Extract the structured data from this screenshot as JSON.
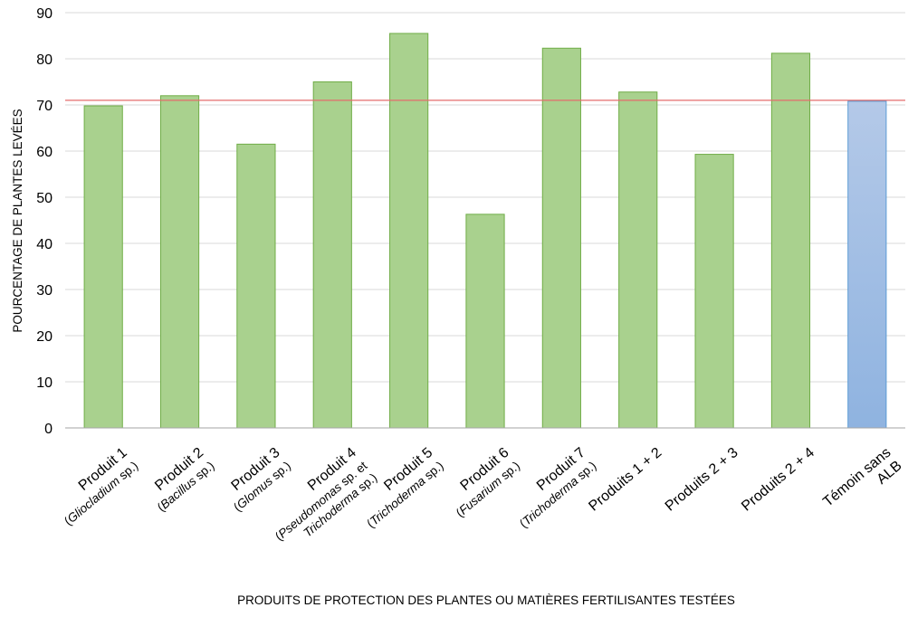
{
  "chart_data": {
    "type": "bar",
    "title": "",
    "xlabel": "PRODUITS DE PROTECTION DES PLANTES OU MATIÈRES FERTILISANTES TESTÉES",
    "ylabel": "POURCENTAGE DE PLANTES LEVÉES",
    "ylim": [
      0,
      90
    ],
    "yticks": [
      0,
      10,
      20,
      30,
      40,
      50,
      60,
      70,
      80,
      90
    ],
    "grid": true,
    "reference_line": 71,
    "categories": [
      {
        "label": "Produit 1",
        "sub": [
          {
            "text": "(",
            "italic": false
          },
          {
            "text": "Gliocladium",
            "italic": true
          },
          {
            "text": " sp.)",
            "italic": false
          }
        ]
      },
      {
        "label": "Produit 2",
        "sub": [
          {
            "text": "(",
            "italic": false
          },
          {
            "text": "Bacillus",
            "italic": true
          },
          {
            "text": " sp.)",
            "italic": false
          }
        ]
      },
      {
        "label": "Produit 3",
        "sub": [
          {
            "text": "(",
            "italic": false
          },
          {
            "text": "Glomus",
            "italic": true
          },
          {
            "text": " sp.)",
            "italic": false
          }
        ]
      },
      {
        "label": "Produit 4",
        "sub": [
          {
            "text": "(",
            "italic": false
          },
          {
            "text": "Pseudomonas",
            "italic": true
          },
          {
            "text": " sp. et",
            "italic": false
          }
        ],
        "sub2": [
          {
            "text": "Trichoderma",
            "italic": true
          },
          {
            "text": " sp.)",
            "italic": false
          }
        ]
      },
      {
        "label": "Produit 5",
        "sub": [
          {
            "text": "(",
            "italic": false
          },
          {
            "text": "Trichoderma",
            "italic": true
          },
          {
            "text": " sp.)",
            "italic": false
          }
        ]
      },
      {
        "label": "Produit 6",
        "sub": [
          {
            "text": "(",
            "italic": false
          },
          {
            "text": "Fusarium",
            "italic": true
          },
          {
            "text": " sp.)",
            "italic": false
          }
        ]
      },
      {
        "label": "Produit 7",
        "sub": [
          {
            "text": "(",
            "italic": false
          },
          {
            "text": "Trichoderma",
            "italic": true
          },
          {
            "text": " sp.)",
            "italic": false
          }
        ]
      },
      {
        "label": "Produits 1 + 2"
      },
      {
        "label": "Produits 2 + 3"
      },
      {
        "label": "Produits 2 + 4"
      },
      {
        "label": "Témoin sans",
        "label2": "ALB"
      }
    ],
    "values": [
      69.8,
      72.0,
      61.5,
      75.0,
      85.5,
      46.3,
      82.3,
      72.8,
      59.3,
      81.2,
      70.8
    ],
    "colors": {
      "bar_fill": "#a9d18e",
      "bar_stroke": "#70ad47",
      "control_fill_top": "#b4c9e8",
      "control_fill_bottom": "#8fb3e0",
      "control_stroke": "#5b9bd5",
      "reference_line": "#e46c6c",
      "grid": "#d9d9d9"
    }
  }
}
